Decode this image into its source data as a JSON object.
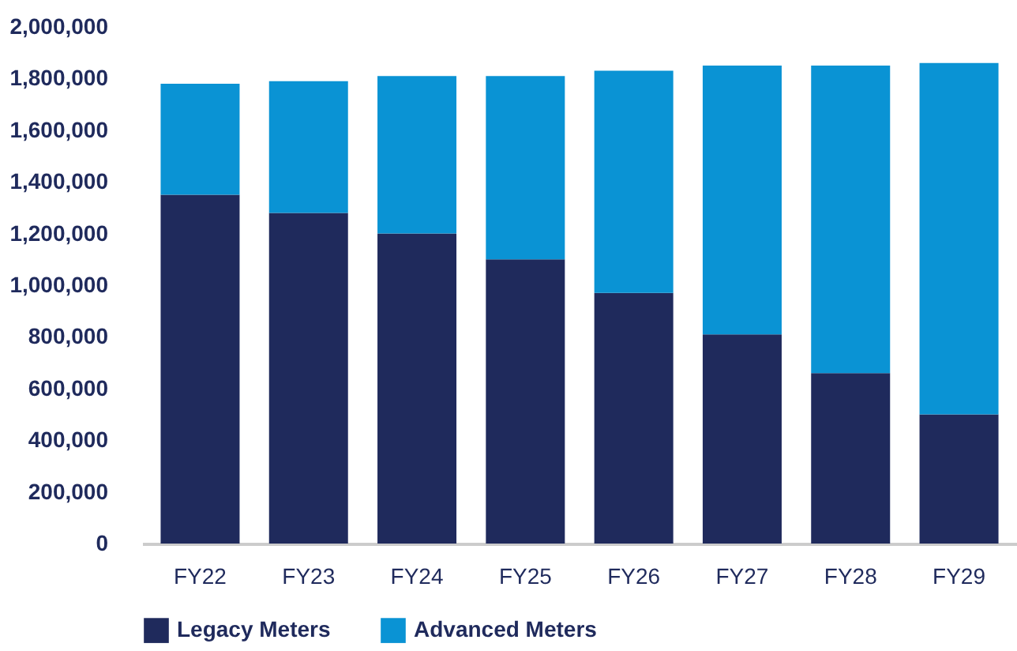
{
  "chart_data": {
    "type": "bar",
    "stacked": true,
    "categories": [
      "FY22",
      "FY23",
      "FY24",
      "FY25",
      "FY26",
      "FY27",
      "FY28",
      "FY29"
    ],
    "series": [
      {
        "name": "Legacy Meters",
        "color": "#1f2a5c",
        "values": [
          1350000,
          1280000,
          1200000,
          1100000,
          970000,
          810000,
          660000,
          500000
        ]
      },
      {
        "name": "Advanced Meters",
        "color": "#0a93d4",
        "values": [
          430000,
          510000,
          610000,
          710000,
          860000,
          1040000,
          1190000,
          1360000
        ]
      }
    ],
    "ylim": [
      0,
      2000000
    ],
    "yticks": [
      0,
      {
        "value": 200000,
        "label": "200,000"
      },
      {
        "value": 400000,
        "label": "400,000"
      },
      {
        "value": 600000,
        "label": "600,000"
      },
      {
        "value": 800000,
        "label": "800,000"
      },
      {
        "value": 1000000,
        "label": "1,000,000"
      },
      {
        "value": 1200000,
        "label": "1,200,000"
      },
      {
        "value": 1400000,
        "label": "1,400,000"
      },
      {
        "value": 1600000,
        "label": "1,600,000"
      },
      {
        "value": 1800000,
        "label": "1,800,000"
      },
      {
        "value": 2000000,
        "label": "2,000,000"
      }
    ],
    "grid": false,
    "legend": "bottom"
  }
}
